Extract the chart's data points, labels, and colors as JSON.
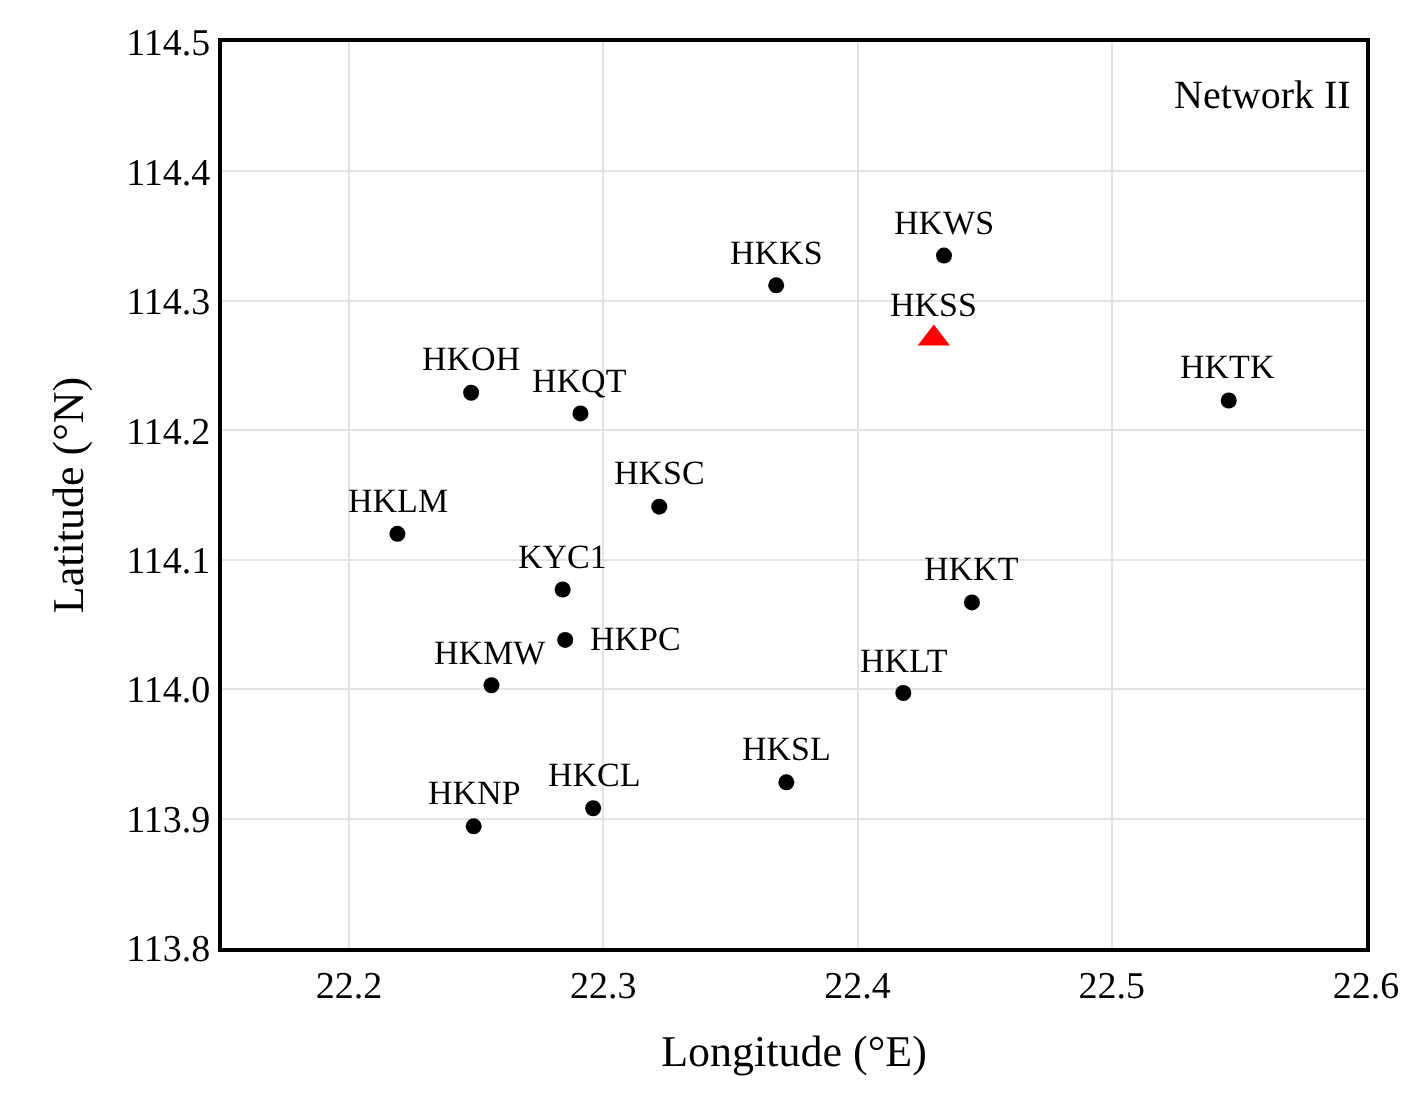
{
  "chart_data": {
    "type": "scatter",
    "xlabel": "Longitude (°E)",
    "ylabel": "Latitude (°N)",
    "series": [
      {
        "color": "#000000",
        "marker": "circle",
        "x": [
          22.434,
          22.368,
          22.248,
          22.291,
          22.546,
          22.322,
          22.219,
          22.284,
          22.445,
          22.285,
          22.256,
          22.418,
          22.372,
          22.296,
          22.249
        ],
        "values": [
          114.335,
          114.312,
          114.229,
          114.213,
          114.223,
          114.141,
          114.12,
          114.077,
          114.067,
          114.038,
          114.003,
          113.997,
          113.928,
          113.908,
          113.894
        ]
      },
      {
        "color": "#ff0000",
        "marker": "triangle",
        "x": [
          22.43
        ],
        "values": [
          114.271
        ]
      }
    ],
    "annotations": [
      {
        "text": "HKWS",
        "x": 22.434,
        "y": 114.335
      },
      {
        "text": "HKKS",
        "x": 22.368,
        "y": 114.312
      },
      {
        "text": "HKSS",
        "x": 22.43,
        "y": 114.271
      },
      {
        "text": "HKOH",
        "x": 22.248,
        "y": 114.229
      },
      {
        "text": "HKQT",
        "x": 22.291,
        "y": 114.213
      },
      {
        "text": "HKTK",
        "x": 22.546,
        "y": 114.223
      },
      {
        "text": "HKSC",
        "x": 22.322,
        "y": 114.141
      },
      {
        "text": "HKLM",
        "x": 22.219,
        "y": 114.12
      },
      {
        "text": "KYC1",
        "x": 22.284,
        "y": 114.077
      },
      {
        "text": "HKKT",
        "x": 22.445,
        "y": 114.067
      },
      {
        "text": "HKPC",
        "x": 22.285,
        "y": 114.038
      },
      {
        "text": "HKMW",
        "x": 22.256,
        "y": 114.003
      },
      {
        "text": "HKLT",
        "x": 22.418,
        "y": 113.997
      },
      {
        "text": "HKSL",
        "x": 22.372,
        "y": 113.928
      },
      {
        "text": "HKCL",
        "x": 22.296,
        "y": 113.908
      },
      {
        "text": "HKNP",
        "x": 22.249,
        "y": 113.894
      },
      "Network II"
    ],
    "xlim": [
      22.15,
      22.6
    ],
    "xticks": [
      22.2,
      22.3,
      22.4,
      22.5,
      22.6
    ],
    "ylim": [
      113.8,
      114.5
    ],
    "yticks": [
      113.8,
      113.9,
      {
        "value": 114.0,
        "label": "114.0"
      },
      114.1,
      114.2,
      114.3,
      114.4,
      114.5
    ],
    "grid": true
  }
}
